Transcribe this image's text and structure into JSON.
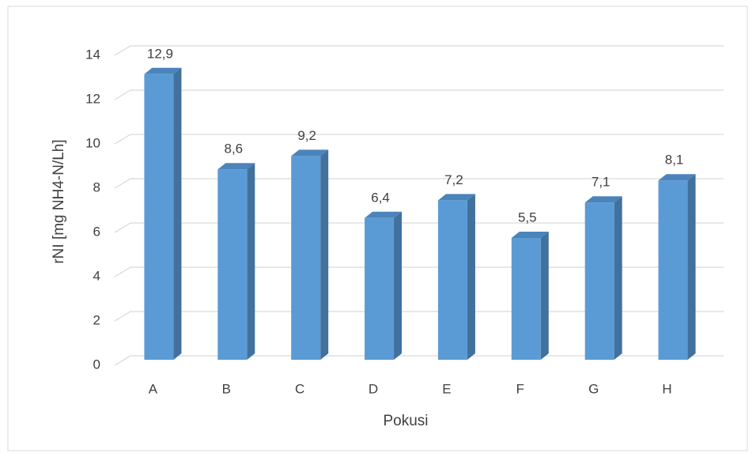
{
  "chart_data": {
    "type": "bar3d",
    "x_label": "Pokusi",
    "y_label": "rNI [mg NH4-N/Lh]",
    "categories": [
      "A",
      "B",
      "C",
      "D",
      "E",
      "F",
      "G",
      "H"
    ],
    "values": [
      12.9,
      8.6,
      9.2,
      6.4,
      7.2,
      5.5,
      7.1,
      8.1
    ],
    "value_labels": [
      "12,9",
      "8,6",
      "9,2",
      "6,4",
      "7,2",
      "5,5",
      "7,1",
      "8,1"
    ],
    "color": "#5b9bd5",
    "ylim": [
      0,
      14
    ],
    "yticks": [
      0,
      2,
      4,
      6,
      8,
      10,
      12,
      14
    ],
    "grid": true
  }
}
